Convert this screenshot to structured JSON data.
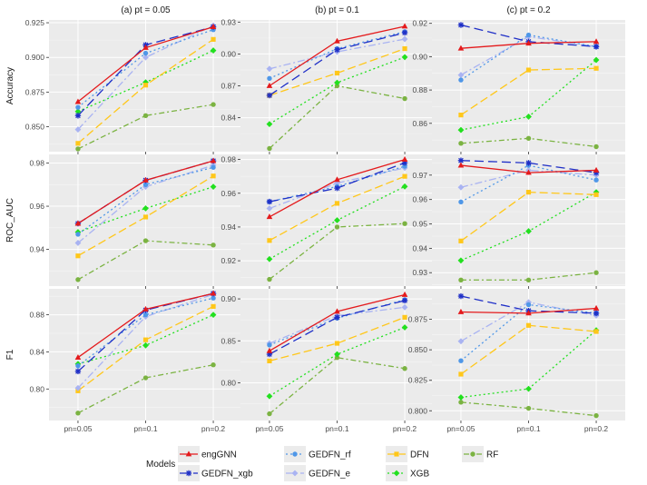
{
  "chart_data": {
    "type": "line",
    "facet_titles": [
      "(a) pt = 0.05",
      "(b) pt = 0.1",
      "(c) pt = 0.2"
    ],
    "metrics": [
      "Accuracy",
      "ROC_AUC",
      "F1"
    ],
    "categories": [
      "pn=0.05",
      "pn=0.1",
      "pn=0.2"
    ],
    "legend_title": "Models",
    "series_meta": [
      {
        "name": "engGNN",
        "color": "#e41a1c",
        "dash": "",
        "marker": "triangle"
      },
      {
        "name": "GEDFN_xgb",
        "color": "#1f2fc7",
        "dash": "10,5",
        "marker": "star"
      },
      {
        "name": "GEDFN_rf",
        "color": "#4f97e8",
        "dash": "2,3",
        "marker": "circle"
      },
      {
        "name": "GEDFN_e",
        "color": "#a9b3f2",
        "dash": "8,3,2,3",
        "marker": "diamond"
      },
      {
        "name": "DFN",
        "color": "#ffc71a",
        "dash": "9,4",
        "marker": "square"
      },
      {
        "name": "XGB",
        "color": "#22e01f",
        "dash": "2,3",
        "marker": "diamond"
      },
      {
        "name": "RF",
        "color": "#7bb342",
        "dash": "6,3,2,3",
        "marker": "circle"
      }
    ],
    "panels": [
      {
        "metric": "Accuracy",
        "facet": 0,
        "ylim": [
          0.832,
          0.927
        ],
        "yticks": [
          0.85,
          0.875,
          0.9,
          0.925
        ],
        "yticklabels": [
          "0.850",
          "0.875",
          "0.900",
          "0.925"
        ],
        "series": {
          "engGNN": [
            0.868,
            0.907,
            0.922
          ],
          "GEDFN_xgb": [
            0.858,
            0.909,
            0.922
          ],
          "GEDFN_rf": [
            0.864,
            0.903,
            0.92
          ],
          "GEDFN_e": [
            0.848,
            0.9,
            0.923
          ],
          "DFN": [
            0.838,
            0.88,
            0.913
          ],
          "XGB": [
            0.861,
            0.882,
            0.905
          ],
          "RF": [
            0.834,
            0.858,
            0.866
          ]
        }
      },
      {
        "metric": "Accuracy",
        "facet": 1,
        "ylim": [
          0.808,
          0.932
        ],
        "yticks": [
          0.84,
          0.87,
          0.9,
          0.93
        ],
        "yticklabels": [
          "0.84",
          "0.87",
          "0.90",
          "0.93"
        ],
        "series": {
          "engGNN": [
            0.87,
            0.912,
            0.926
          ],
          "GEDFN_xgb": [
            0.861,
            0.904,
            0.92
          ],
          "GEDFN_rf": [
            0.877,
            0.905,
            0.921
          ],
          "GEDFN_e": [
            0.886,
            0.902,
            0.914
          ],
          "DFN": [
            0.861,
            0.882,
            0.905
          ],
          "XGB": [
            0.834,
            0.873,
            0.897
          ],
          "RF": [
            0.811,
            0.87,
            0.858
          ]
        }
      },
      {
        "metric": "Accuracy",
        "facet": 2,
        "ylim": [
          0.843,
          0.922
        ],
        "yticks": [
          0.86,
          0.88,
          0.9,
          0.92
        ],
        "yticklabels": [
          "0.86",
          "0.88",
          "0.90",
          "0.92"
        ],
        "series": {
          "engGNN": [
            0.905,
            0.908,
            0.909
          ],
          "GEDFN_xgb": [
            0.919,
            0.909,
            0.906
          ],
          "GEDFN_rf": [
            0.886,
            0.913,
            0.906
          ],
          "GEDFN_e": [
            0.889,
            0.912,
            0.906
          ],
          "DFN": [
            0.865,
            0.892,
            0.893
          ],
          "XGB": [
            0.856,
            0.864,
            0.898
          ],
          "RF": [
            0.848,
            0.851,
            0.846
          ]
        }
      },
      {
        "metric": "ROC_AUC",
        "facet": 0,
        "ylim": [
          0.923,
          0.984
        ],
        "yticks": [
          0.94,
          0.96,
          0.98
        ],
        "yticklabels": [
          "0.94",
          "0.96",
          "0.98"
        ],
        "series": {
          "engGNN": [
            0.952,
            0.972,
            0.981
          ],
          "GEDFN_xgb": [
            0.952,
            0.972,
            0.981
          ],
          "GEDFN_rf": [
            0.947,
            0.97,
            0.978
          ],
          "GEDFN_e": [
            0.943,
            0.969,
            0.979
          ],
          "DFN": [
            0.937,
            0.955,
            0.974
          ],
          "XGB": [
            0.948,
            0.959,
            0.969
          ],
          "RF": [
            0.926,
            0.944,
            0.942
          ]
        }
      },
      {
        "metric": "ROC_AUC",
        "facet": 1,
        "ylim": [
          0.905,
          0.983
        ],
        "yticks": [
          0.92,
          0.94,
          0.96,
          0.98
        ],
        "yticklabels": [
          "0.92",
          "0.94",
          "0.96",
          "0.98"
        ],
        "series": {
          "engGNN": [
            0.946,
            0.968,
            0.98
          ],
          "GEDFN_xgb": [
            0.955,
            0.963,
            0.978
          ],
          "GEDFN_rf": [
            0.955,
            0.964,
            0.976
          ],
          "GEDFN_e": [
            0.951,
            0.966,
            0.975
          ],
          "DFN": [
            0.932,
            0.954,
            0.97
          ],
          "XGB": [
            0.921,
            0.944,
            0.964
          ],
          "RF": [
            0.909,
            0.94,
            0.942
          ]
        }
      },
      {
        "metric": "ROC_AUC",
        "facet": 2,
        "ylim": [
          0.9245,
          0.9785
        ],
        "yticks": [
          0.93,
          0.94,
          0.95,
          0.96,
          0.97
        ],
        "yticklabels": [
          "0.93",
          "0.94",
          "0.95",
          "0.96",
          "0.97"
        ],
        "series": {
          "engGNN": [
            0.974,
            0.971,
            0.972
          ],
          "GEDFN_xgb": [
            0.976,
            0.975,
            0.971
          ],
          "GEDFN_rf": [
            0.959,
            0.974,
            0.968
          ],
          "GEDFN_e": [
            0.965,
            0.972,
            0.97
          ],
          "DFN": [
            0.943,
            0.963,
            0.962
          ],
          "XGB": [
            0.935,
            0.947,
            0.963
          ],
          "RF": [
            0.927,
            0.927,
            0.93
          ]
        }
      },
      {
        "metric": "F1",
        "facet": 0,
        "ylim": [
          0.766,
          0.908
        ],
        "yticks": [
          0.8,
          0.84,
          0.88
        ],
        "yticklabels": [
          "0.80",
          "0.84",
          "0.88"
        ],
        "series": {
          "engGNN": [
            0.834,
            0.886,
            0.903
          ],
          "GEDFN_xgb": [
            0.819,
            0.885,
            0.903
          ],
          "GEDFN_rf": [
            0.825,
            0.88,
            0.898
          ],
          "GEDFN_e": [
            0.801,
            0.878,
            0.902
          ],
          "DFN": [
            0.798,
            0.853,
            0.889
          ],
          "XGB": [
            0.827,
            0.847,
            0.88
          ],
          "RF": [
            0.774,
            0.812,
            0.826
          ]
        }
      },
      {
        "metric": "F1",
        "facet": 1,
        "ylim": [
          0.755,
          0.912
        ],
        "yticks": [
          0.8,
          0.85,
          0.9
        ],
        "yticklabels": [
          "0.80",
          "0.85",
          "0.90"
        ],
        "series": {
          "engGNN": [
            0.838,
            0.885,
            0.905
          ],
          "GEDFN_xgb": [
            0.834,
            0.878,
            0.898
          ],
          "GEDFN_rf": [
            0.845,
            0.877,
            0.899
          ],
          "GEDFN_e": [
            0.847,
            0.88,
            0.89
          ],
          "DFN": [
            0.826,
            0.847,
            0.878
          ],
          "XGB": [
            0.784,
            0.834,
            0.866
          ],
          "RF": [
            0.763,
            0.83,
            0.817
          ]
        }
      },
      {
        "metric": "F1",
        "facet": 2,
        "ylim": [
          0.792,
          0.9
        ],
        "yticks": [
          0.8,
          0.825,
          0.85,
          0.875
        ],
        "yticklabels": [
          "0.800",
          "0.825",
          "0.850",
          "0.875"
        ],
        "series": {
          "engGNN": [
            0.881,
            0.88,
            0.884
          ],
          "GEDFN_xgb": [
            0.894,
            0.882,
            0.88
          ],
          "GEDFN_rf": [
            0.841,
            0.887,
            0.88
          ],
          "GEDFN_e": [
            0.857,
            0.889,
            0.878
          ],
          "DFN": [
            0.83,
            0.87,
            0.865
          ],
          "XGB": [
            0.811,
            0.818,
            0.866
          ],
          "RF": [
            0.807,
            0.802,
            0.796
          ]
        }
      }
    ]
  }
}
